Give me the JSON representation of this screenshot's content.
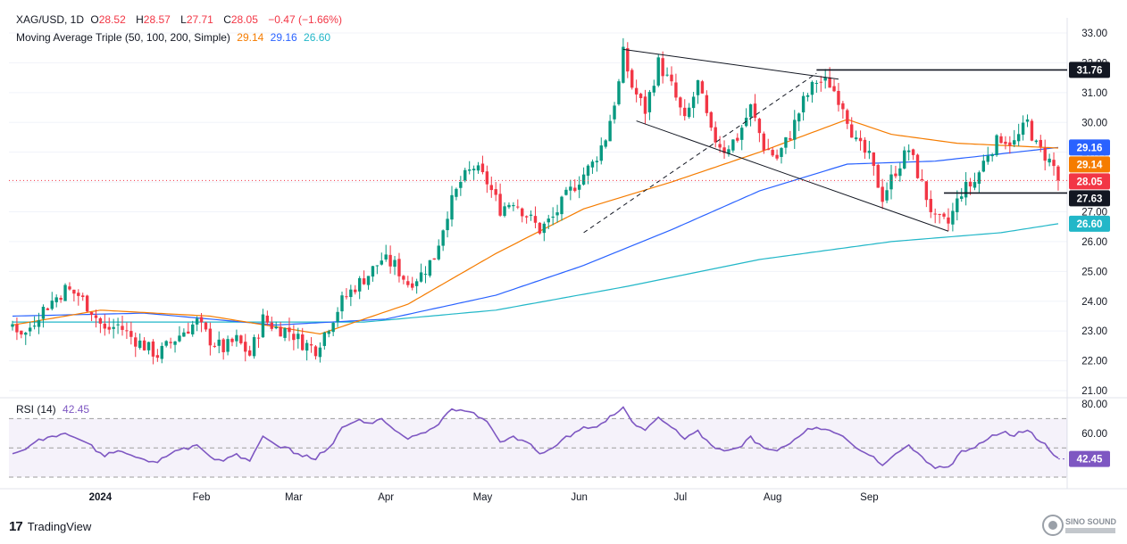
{
  "header": {
    "symbol": "XAG/USD, 1D",
    "o_label": "O",
    "o": "28.52",
    "h_label": "H",
    "h": "28.57",
    "l_label": "L",
    "l": "27.71",
    "c_label": "C",
    "c": "28.05",
    "change": "−0.47 (−1.66%)",
    "ma_title": "Moving Average Triple (50, 100, 200, Simple)",
    "ma50": "29.14",
    "ma100": "29.16",
    "ma200": "26.60",
    "rsi_title": "RSI (14)",
    "rsi_value": "42.45"
  },
  "colors": {
    "up": "#089981",
    "down": "#f23645",
    "ma50": "#f57c00",
    "ma100": "#2962ff",
    "ma200": "#22b7c8",
    "rsi": "#7e57c2"
  },
  "branding": {
    "name": "TradingView",
    "icon": "tradingview-logo-icon",
    "watermark": "SINO SOUND"
  },
  "chart_data": {
    "type": "candlestick",
    "price_axis": {
      "min": 21.0,
      "max": 33.0,
      "ticks": [
        "21.00",
        "22.00",
        "23.00",
        "24.00",
        "25.00",
        "26.00",
        "27.00",
        "28.00",
        "29.00",
        "30.00",
        "31.00",
        "32.00",
        "33.00"
      ]
    },
    "rsi_axis": {
      "min": 30,
      "max": 80,
      "ticks": [
        "60.00",
        "80.00"
      ],
      "bands": [
        30,
        50,
        70
      ]
    },
    "months": [
      "2024",
      "Feb",
      "Mar",
      "Apr",
      "May",
      "Jun",
      "Jul",
      "Aug",
      "Sep"
    ],
    "price_tags": [
      {
        "value": 31.76,
        "label": "31.76",
        "color": "#131722"
      },
      {
        "value": 29.16,
        "label": "29.16",
        "color": "#2962ff"
      },
      {
        "value": 29.14,
        "label": "29.14",
        "color": "#f57c00"
      },
      {
        "value": 28.05,
        "label": "28.05",
        "color": "#f23645"
      },
      {
        "value": 27.63,
        "label": "27.63",
        "color": "#131722"
      },
      {
        "value": 26.6,
        "label": "26.60",
        "color": "#22b7c8"
      }
    ],
    "rsi_tag": {
      "value": 42.45,
      "label": "42.45"
    },
    "anchors": [
      [
        0,
        23.2
      ],
      [
        3,
        22.9
      ],
      [
        6,
        23.6
      ],
      [
        9,
        24.0
      ],
      [
        12,
        24.4
      ],
      [
        15,
        24.2
      ],
      [
        18,
        23.7
      ],
      [
        21,
        23.0
      ],
      [
        24,
        23.2
      ],
      [
        27,
        22.8
      ],
      [
        30,
        22.5
      ],
      [
        33,
        22.2
      ],
      [
        36,
        22.6
      ],
      [
        39,
        23.0
      ],
      [
        42,
        23.3
      ],
      [
        45,
        22.7
      ],
      [
        48,
        22.4
      ],
      [
        51,
        22.7
      ],
      [
        54,
        22.2
      ],
      [
        57,
        23.4
      ],
      [
        60,
        23.1
      ],
      [
        63,
        23.0
      ],
      [
        66,
        22.6
      ],
      [
        69,
        22.4
      ],
      [
        72,
        23.2
      ],
      [
        75,
        24.0
      ],
      [
        78,
        24.5
      ],
      [
        81,
        24.9
      ],
      [
        84,
        25.4
      ],
      [
        87,
        25.2
      ],
      [
        90,
        24.6
      ],
      [
        93,
        24.9
      ],
      [
        96,
        25.5
      ],
      [
        99,
        27.0
      ],
      [
        102,
        28.0
      ],
      [
        105,
        28.5
      ],
      [
        108,
        28.0
      ],
      [
        111,
        27.1
      ],
      [
        114,
        27.4
      ],
      [
        117,
        26.9
      ],
      [
        120,
        26.4
      ],
      [
        123,
        26.8
      ],
      [
        126,
        27.5
      ],
      [
        129,
        28.1
      ],
      [
        132,
        28.6
      ],
      [
        135,
        29.5
      ],
      [
        138,
        31.3
      ],
      [
        139,
        32.3
      ],
      [
        141,
        31.2
      ],
      [
        144,
        30.4
      ],
      [
        147,
        32.0
      ],
      [
        150,
        31.2
      ],
      [
        153,
        30.0
      ],
      [
        156,
        31.3
      ],
      [
        159,
        29.6
      ],
      [
        162,
        29.1
      ],
      [
        165,
        29.5
      ],
      [
        168,
        30.5
      ],
      [
        171,
        29.2
      ],
      [
        174,
        28.8
      ],
      [
        177,
        29.6
      ],
      [
        180,
        30.7
      ],
      [
        183,
        31.4
      ],
      [
        186,
        31.3
      ],
      [
        189,
        30.6
      ],
      [
        192,
        29.3
      ],
      [
        195,
        28.8
      ],
      [
        198,
        27.5
      ],
      [
        201,
        28.4
      ],
      [
        204,
        29.1
      ],
      [
        207,
        27.9
      ],
      [
        210,
        26.7
      ],
      [
        213,
        26.6
      ],
      [
        216,
        27.7
      ],
      [
        219,
        28.0
      ],
      [
        222,
        29.0
      ],
      [
        225,
        29.5
      ],
      [
        228,
        29.3
      ],
      [
        231,
        30.0
      ],
      [
        233,
        29.2
      ],
      [
        235,
        28.9
      ],
      [
        237,
        28.5
      ],
      [
        238,
        28.05
      ]
    ],
    "trend_lines": [
      {
        "from": [
          130,
          26.3
        ],
        "to": [
          183,
          31.65
        ],
        "style": "dashed"
      },
      {
        "from": [
          139,
          32.45
        ],
        "to": [
          188,
          31.45
        ],
        "style": "solid"
      },
      {
        "from": [
          142,
          30.05
        ],
        "to": [
          213,
          26.35
        ],
        "style": "solid"
      },
      {
        "from": [
          183,
          31.76
        ],
        "to": [
          238,
          31.76
        ],
        "style": "solid-bold"
      },
      {
        "from": [
          212,
          27.63
        ],
        "to": [
          238,
          27.63
        ],
        "style": "solid-bold"
      }
    ],
    "rsi_anchors": [
      [
        0,
        46
      ],
      [
        3,
        49
      ],
      [
        6,
        56
      ],
      [
        9,
        58
      ],
      [
        12,
        60
      ],
      [
        15,
        56
      ],
      [
        18,
        52
      ],
      [
        21,
        44
      ],
      [
        24,
        48
      ],
      [
        27,
        45
      ],
      [
        30,
        42
      ],
      [
        33,
        40
      ],
      [
        36,
        46
      ],
      [
        39,
        50
      ],
      [
        42,
        52
      ],
      [
        45,
        44
      ],
      [
        48,
        41
      ],
      [
        51,
        46
      ],
      [
        54,
        41
      ],
      [
        57,
        58
      ],
      [
        60,
        52
      ],
      [
        63,
        50
      ],
      [
        66,
        44
      ],
      [
        69,
        42
      ],
      [
        72,
        50
      ],
      [
        75,
        64
      ],
      [
        78,
        68
      ],
      [
        81,
        67
      ],
      [
        84,
        70
      ],
      [
        87,
        62
      ],
      [
        90,
        56
      ],
      [
        93,
        60
      ],
      [
        96,
        64
      ],
      [
        99,
        74
      ],
      [
        102,
        76
      ],
      [
        105,
        74
      ],
      [
        108,
        68
      ],
      [
        111,
        54
      ],
      [
        114,
        58
      ],
      [
        117,
        54
      ],
      [
        120,
        46
      ],
      [
        123,
        50
      ],
      [
        126,
        58
      ],
      [
        129,
        62
      ],
      [
        132,
        64
      ],
      [
        135,
        68
      ],
      [
        138,
        75
      ],
      [
        139,
        78
      ],
      [
        141,
        68
      ],
      [
        144,
        62
      ],
      [
        147,
        71
      ],
      [
        150,
        64
      ],
      [
        153,
        56
      ],
      [
        156,
        62
      ],
      [
        159,
        52
      ],
      [
        162,
        48
      ],
      [
        165,
        50
      ],
      [
        168,
        58
      ],
      [
        171,
        50
      ],
      [
        174,
        48
      ],
      [
        177,
        53
      ],
      [
        180,
        60
      ],
      [
        183,
        64
      ],
      [
        186,
        62
      ],
      [
        189,
        58
      ],
      [
        192,
        50
      ],
      [
        195,
        45
      ],
      [
        198,
        38
      ],
      [
        201,
        46
      ],
      [
        204,
        52
      ],
      [
        207,
        44
      ],
      [
        210,
        36
      ],
      [
        213,
        37
      ],
      [
        216,
        48
      ],
      [
        219,
        50
      ],
      [
        222,
        56
      ],
      [
        225,
        60
      ],
      [
        228,
        58
      ],
      [
        231,
        62
      ],
      [
        233,
        56
      ],
      [
        235,
        52
      ],
      [
        237,
        45
      ],
      [
        238,
        42.45
      ]
    ],
    "ma50_anchors": [
      [
        0,
        23.2
      ],
      [
        20,
        23.7
      ],
      [
        45,
        23.5
      ],
      [
        70,
        22.9
      ],
      [
        90,
        23.9
      ],
      [
        110,
        25.6
      ],
      [
        130,
        27.1
      ],
      [
        150,
        28.0
      ],
      [
        170,
        29.0
      ],
      [
        190,
        30.1
      ],
      [
        200,
        29.6
      ],
      [
        215,
        29.3
      ],
      [
        238,
        29.14
      ]
    ],
    "ma100_anchors": [
      [
        0,
        23.5
      ],
      [
        30,
        23.6
      ],
      [
        60,
        23.2
      ],
      [
        85,
        23.4
      ],
      [
        110,
        24.2
      ],
      [
        130,
        25.2
      ],
      [
        150,
        26.4
      ],
      [
        170,
        27.7
      ],
      [
        190,
        28.6
      ],
      [
        210,
        28.7
      ],
      [
        238,
        29.16
      ]
    ],
    "ma200_anchors": [
      [
        0,
        23.3
      ],
      [
        40,
        23.3
      ],
      [
        80,
        23.3
      ],
      [
        110,
        23.7
      ],
      [
        140,
        24.5
      ],
      [
        170,
        25.4
      ],
      [
        200,
        26.0
      ],
      [
        225,
        26.3
      ],
      [
        238,
        26.6
      ]
    ]
  }
}
